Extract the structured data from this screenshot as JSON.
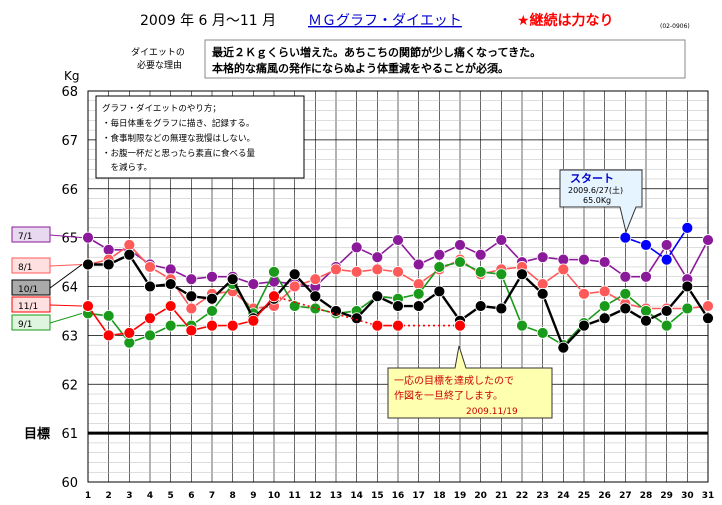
{
  "header": {
    "date_range": "2009 年 6 月〜11 月",
    "title": "ＭＧグラフ・ダイエット",
    "motto": "★継続は力なり",
    "code": "(02-0906)"
  },
  "reason": {
    "label_line1": "ダイエットの",
    "label_line2": "必要な理由",
    "text_line1": "最近２Ｋｇくらい増えた。あちこちの関節が少し痛くなってきた。",
    "text_line2": "本格的な痛風の発作にならぬよう体重減をやることが必須。"
  },
  "howto": {
    "title": "グラフ・ダイエットのやり方；",
    "lines": [
      "・毎日体重をグラフに描き、記録する。",
      "・食事制限などの無理な我慢はしない。",
      "・お腹一杯だと思ったら素直に食べる量",
      "　を減らす。"
    ]
  },
  "start_callout": {
    "title": "スタート",
    "date": "2009.6/27(土)",
    "weight": "65.0Kg"
  },
  "end_callout": {
    "line1": "一応の目標を達成したので",
    "line2": "作図を一旦終了します。",
    "date": "2009.11/19"
  },
  "colors": {
    "june": "#0000ff",
    "july": "#8b1a9a",
    "august": "#ff5a5a",
    "september": "#1a9a1a",
    "october": "#000000",
    "november": "#ff0000",
    "goal": "#000000",
    "grid": "#000000"
  },
  "chart_data": {
    "type": "line",
    "unit_label": "Kg",
    "ylim": [
      60,
      68
    ],
    "xlim": [
      1,
      31
    ],
    "yticks": [
      60,
      61,
      62,
      63,
      64,
      65,
      66,
      67,
      68
    ],
    "xticks": [
      1,
      2,
      3,
      4,
      5,
      6,
      7,
      8,
      9,
      10,
      11,
      12,
      13,
      14,
      15,
      16,
      17,
      18,
      19,
      20,
      21,
      22,
      23,
      24,
      25,
      26,
      27,
      28,
      29,
      30,
      31
    ],
    "goal": {
      "label": "目標",
      "value": 61
    },
    "series": [
      {
        "name": "",
        "key": "june",
        "points": [
          [
            27,
            65.0
          ],
          [
            28,
            64.85
          ],
          [
            29,
            64.55
          ],
          [
            30,
            65.2
          ]
        ]
      },
      {
        "name": "7/1",
        "key": "july",
        "points": [
          [
            1,
            65.0
          ],
          [
            2,
            64.75
          ],
          [
            3,
            64.75
          ],
          [
            4,
            64.45
          ],
          [
            5,
            64.35
          ],
          [
            6,
            64.15
          ],
          [
            7,
            64.2
          ],
          [
            8,
            64.2
          ],
          [
            9,
            64.05
          ],
          [
            10,
            64.1
          ],
          [
            11,
            64.05
          ],
          [
            12,
            64.0
          ],
          [
            13,
            64.4
          ],
          [
            14,
            64.8
          ],
          [
            15,
            64.6
          ],
          [
            16,
            64.95
          ],
          [
            17,
            64.45
          ],
          [
            18,
            64.65
          ],
          [
            19,
            64.85
          ],
          [
            20,
            64.65
          ],
          [
            21,
            64.95
          ],
          [
            22,
            64.5
          ],
          [
            23,
            64.6
          ],
          [
            24,
            64.55
          ],
          [
            25,
            64.55
          ],
          [
            26,
            64.5
          ],
          [
            27,
            64.2
          ],
          [
            28,
            64.2
          ],
          [
            29,
            64.85
          ],
          [
            30,
            64.15
          ],
          [
            31,
            64.95
          ]
        ]
      },
      {
        "name": "8/1",
        "key": "august",
        "points": [
          [
            1,
            64.45
          ],
          [
            2,
            64.55
          ],
          [
            3,
            64.85
          ],
          [
            4,
            64.4
          ],
          [
            5,
            64.15
          ],
          [
            6,
            63.55
          ],
          [
            7,
            63.85
          ],
          [
            8,
            63.9
          ],
          [
            9,
            63.55
          ],
          [
            10,
            63.6
          ],
          [
            11,
            64.0
          ],
          [
            12,
            64.15
          ],
          [
            13,
            64.35
          ],
          [
            14,
            64.3
          ],
          [
            15,
            64.35
          ],
          [
            16,
            64.3
          ],
          [
            17,
            64.05
          ],
          [
            18,
            64.35
          ],
          [
            19,
            64.55
          ],
          [
            20,
            64.25
          ],
          [
            21,
            64.35
          ],
          [
            22,
            64.4
          ],
          [
            23,
            64.05
          ],
          [
            24,
            64.35
          ],
          [
            25,
            63.85
          ],
          [
            26,
            63.9
          ],
          [
            27,
            63.65
          ],
          [
            28,
            63.55
          ],
          [
            29,
            63.55
          ],
          [
            30,
            63.55
          ],
          [
            31,
            63.6
          ]
        ]
      },
      {
        "name": "9/1",
        "key": "september",
        "points": [
          [
            1,
            63.45
          ],
          [
            2,
            63.4
          ],
          [
            3,
            62.85
          ],
          [
            4,
            63.0
          ],
          [
            5,
            63.2
          ],
          [
            6,
            63.2
          ],
          [
            7,
            63.5
          ],
          [
            8,
            64.05
          ],
          [
            9,
            63.45
          ],
          [
            10,
            64.3
          ],
          [
            11,
            63.6
          ],
          [
            12,
            63.55
          ],
          [
            13,
            63.45
          ],
          [
            14,
            63.5
          ],
          [
            15,
            63.8
          ],
          [
            16,
            63.75
          ],
          [
            17,
            63.85
          ],
          [
            18,
            64.4
          ],
          [
            19,
            64.5
          ],
          [
            20,
            64.3
          ],
          [
            21,
            64.25
          ],
          [
            22,
            63.2
          ],
          [
            23,
            63.05
          ],
          [
            24,
            62.8
          ],
          [
            25,
            63.25
          ],
          [
            26,
            63.6
          ],
          [
            27,
            63.85
          ],
          [
            28,
            63.5
          ],
          [
            29,
            63.2
          ],
          [
            30,
            63.55
          ],
          [
            31,
            null
          ]
        ]
      },
      {
        "name": "10/1",
        "key": "october",
        "points": [
          [
            1,
            64.45
          ],
          [
            2,
            64.45
          ],
          [
            3,
            64.65
          ],
          [
            4,
            64.0
          ],
          [
            5,
            64.05
          ],
          [
            6,
            63.8
          ],
          [
            7,
            63.75
          ],
          [
            8,
            64.15
          ],
          [
            9,
            63.35
          ],
          [
            10,
            63.75
          ],
          [
            11,
            64.25
          ],
          [
            12,
            63.8
          ],
          [
            13,
            63.5
          ],
          [
            14,
            63.35
          ],
          [
            15,
            63.8
          ],
          [
            16,
            63.6
          ],
          [
            17,
            63.6
          ],
          [
            18,
            63.9
          ],
          [
            19,
            63.3
          ],
          [
            20,
            63.6
          ],
          [
            21,
            63.55
          ],
          [
            22,
            64.25
          ],
          [
            23,
            63.85
          ],
          [
            24,
            62.75
          ],
          [
            25,
            63.2
          ],
          [
            26,
            63.35
          ],
          [
            27,
            63.55
          ],
          [
            28,
            63.3
          ],
          [
            29,
            63.5
          ],
          [
            30,
            64.0
          ],
          [
            31,
            63.35
          ]
        ]
      },
      {
        "name": "11/1",
        "key": "november",
        "points": [
          [
            1,
            63.6
          ],
          [
            2,
            63.0
          ],
          [
            3,
            63.05
          ],
          [
            4,
            63.35
          ],
          [
            5,
            63.6
          ],
          [
            6,
            63.1
          ],
          [
            7,
            63.2
          ],
          [
            8,
            63.2
          ],
          [
            9,
            63.3
          ],
          [
            10,
            63.8
          ],
          [
            11,
            null
          ],
          [
            12,
            null
          ],
          [
            13,
            null
          ],
          [
            14,
            null
          ],
          [
            15,
            63.2
          ],
          [
            16,
            63.2
          ],
          [
            17,
            null
          ],
          [
            18,
            null
          ],
          [
            19,
            63.2
          ]
        ]
      }
    ]
  }
}
